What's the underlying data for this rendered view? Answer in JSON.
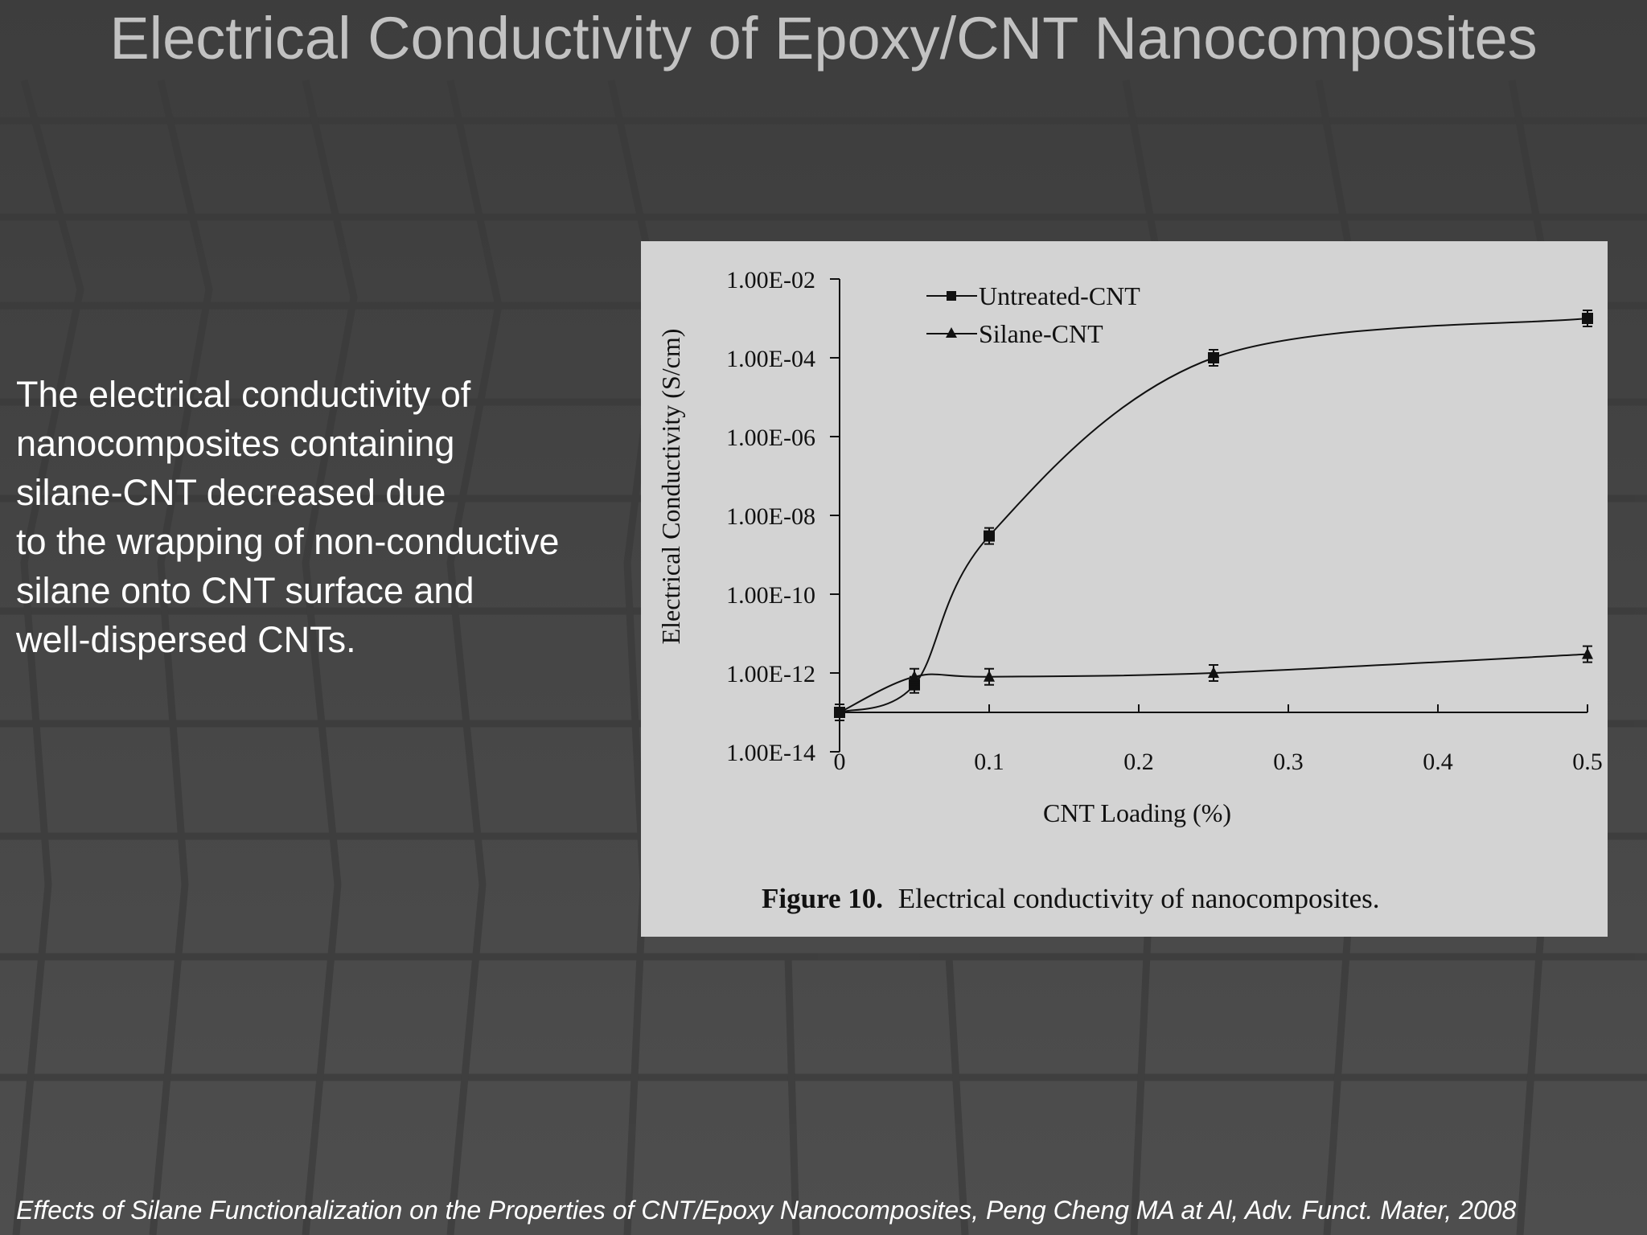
{
  "slide": {
    "title": "Electrical Conductivity of Epoxy/CNT Nanocomposites",
    "body_text": "The electrical conductivity of\nnanocomposites containing\n silane-CNT  decreased due\nto the wrapping of non-conductive\nsilane onto CNT surface and\nwell-dispersed CNTs.",
    "citation": "Effects of Silane Functionalization on the Properties of CNT/Epoxy Nanocomposites, Peng Cheng MA at Al, Adv. Funct. Mater, 2008"
  },
  "colors": {
    "background": "#4a4a4a",
    "grid_lines": "#3a3a3a",
    "title": "#c2c2c2",
    "text": "#ffffff",
    "figure_panel": "#d3d3d3",
    "chart_ink": "#111111"
  },
  "chart_data": {
    "type": "line",
    "caption_bold": "Figure 10.",
    "caption": "Electrical conductivity of nanocomposites.",
    "xlabel": "CNT Loading (%)",
    "ylabel": "Electrical Conductivity (S/cm)",
    "xlim": [
      0,
      0.5
    ],
    "ylim": [
      1e-14,
      0.01
    ],
    "y_scale": "log",
    "x_ticks": [
      "0",
      "0.1",
      "0.2",
      "0.3",
      "0.4",
      "0.5"
    ],
    "y_ticks": [
      "1.00E-02",
      "1.00E-04",
      "1.00E-06",
      "1.00E-08",
      "1.00E-10",
      "1.00E-12",
      "1.00E-14"
    ],
    "legend_position": "top-left",
    "series": [
      {
        "name": "Untreated-CNT",
        "marker": "square",
        "x": [
          0,
          0.05,
          0.1,
          0.25,
          0.5
        ],
        "y": [
          1e-13,
          5e-13,
          3e-09,
          0.0001,
          0.001
        ]
      },
      {
        "name": "Silane-CNT",
        "marker": "triangle",
        "x": [
          0,
          0.05,
          0.1,
          0.25,
          0.5
        ],
        "y": [
          1e-13,
          8e-13,
          8e-13,
          1e-12,
          3e-12
        ]
      }
    ]
  }
}
